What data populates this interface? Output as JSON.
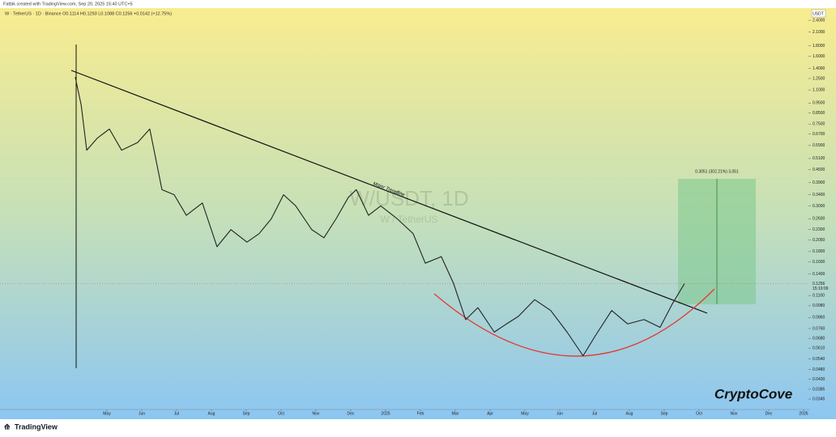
{
  "header": "Fatbik created with TradingView.com, Sep 20, 2025 15:40 UTC+5",
  "chart_data": {
    "type": "line",
    "title": "W/USDT, 1D",
    "subtitle": "W / TetherUS",
    "legend_text": "W · TetherUS · 1D · Binance  O0.1114  H0.1293  L0.1088  C0.1256  +0.0142 (+12.75%)",
    "currency": "USDT",
    "log_scale": true,
    "color": "#222222",
    "x": [
      -0.91,
      -0.74,
      -0.58,
      -0.28,
      0.07,
      0.42,
      0.88,
      1.23,
      1.58,
      1.93,
      2.28,
      2.74,
      3.16,
      3.56,
      4.02,
      4.37,
      4.72,
      5.07,
      5.42,
      5.88,
      6.23,
      6.58,
      6.93,
      7.16,
      7.51,
      7.86,
      8.33,
      8.79,
      9.14,
      9.6,
      9.95,
      10.3,
      10.65,
      11.12,
      11.47,
      11.81,
      12.28,
      12.74,
      13.21,
      13.67,
      14.02,
      14.49,
      14.95,
      15.42,
      15.88,
      16.23,
      16.58
    ],
    "values": [
      1.27,
      0.93,
      0.56,
      0.64,
      0.71,
      0.56,
      0.61,
      0.71,
      0.36,
      0.34,
      0.27,
      0.31,
      0.19,
      0.23,
      0.2,
      0.22,
      0.26,
      0.34,
      0.3,
      0.23,
      0.21,
      0.26,
      0.33,
      0.36,
      0.27,
      0.3,
      0.26,
      0.22,
      0.158,
      0.17,
      0.126,
      0.084,
      0.096,
      0.073,
      0.08,
      0.087,
      0.105,
      0.093,
      0.073,
      0.056,
      0.07,
      0.093,
      0.08,
      0.084,
      0.077,
      0.1,
      0.1256
    ],
    "last_price": {
      "value": 0.1256,
      "label": "0.1256"
    },
    "countdown": "15:19:09",
    "xlim": [
      -3.07,
      20.14
    ],
    "ylim": [
      0.0324,
      2.75
    ],
    "xticks": [
      {
        "value": 0,
        "label": "May"
      },
      {
        "value": 1,
        "label": "Jun"
      },
      {
        "value": 2,
        "label": "Jul"
      },
      {
        "value": 3,
        "label": "Aug"
      },
      {
        "value": 4,
        "label": "Sep"
      },
      {
        "value": 5,
        "label": "Oct"
      },
      {
        "value": 6,
        "label": "Nov"
      },
      {
        "value": 7,
        "label": "Dec"
      },
      {
        "value": 8,
        "label": "2025"
      },
      {
        "value": 9,
        "label": "Feb"
      },
      {
        "value": 10,
        "label": "Mar"
      },
      {
        "value": 11,
        "label": "Apr"
      },
      {
        "value": 12,
        "label": "May"
      },
      {
        "value": 13,
        "label": "Jun"
      },
      {
        "value": 14,
        "label": "Jul"
      },
      {
        "value": 15,
        "label": "Aug"
      },
      {
        "value": 16,
        "label": "Sep"
      },
      {
        "value": 17,
        "label": "Oct"
      },
      {
        "value": 18,
        "label": "Nov"
      },
      {
        "value": 19,
        "label": "Dec"
      },
      {
        "value": 20,
        "label": "2026"
      }
    ],
    "yticks": [
      {
        "value": 2.4,
        "label": "2.4000"
      },
      {
        "value": 2.1,
        "label": "2.1000"
      },
      {
        "value": 1.8,
        "label": "1.8000"
      },
      {
        "value": 1.6,
        "label": "1.6000"
      },
      {
        "value": 1.4,
        "label": "1.4000"
      },
      {
        "value": 1.25,
        "label": "1.2500"
      },
      {
        "value": 1.1,
        "label": "1.1000"
      },
      {
        "value": 0.95,
        "label": "0.9500"
      },
      {
        "value": 0.85,
        "label": "0.8500"
      },
      {
        "value": 0.75,
        "label": "0.7500"
      },
      {
        "value": 0.67,
        "label": "0.6700"
      },
      {
        "value": 0.59,
        "label": "0.5900"
      },
      {
        "value": 0.51,
        "label": "0.5100"
      },
      {
        "value": 0.45,
        "label": "0.4500"
      },
      {
        "value": 0.39,
        "label": "0.3900"
      },
      {
        "value": 0.34,
        "label": "0.3400"
      },
      {
        "value": 0.3,
        "label": "0.3000"
      },
      {
        "value": 0.26,
        "label": "0.2600"
      },
      {
        "value": 0.23,
        "label": "0.2300"
      },
      {
        "value": 0.205,
        "label": "0.2050"
      },
      {
        "value": 0.18,
        "label": "0.1800"
      },
      {
        "value": 0.16,
        "label": "0.1600"
      },
      {
        "value": 0.14,
        "label": "0.1400"
      },
      {
        "value": 0.11,
        "label": "0.1100"
      },
      {
        "value": 0.098,
        "label": "0.0980"
      },
      {
        "value": 0.086,
        "label": "0.0860"
      },
      {
        "value": 0.076,
        "label": "0.0760"
      },
      {
        "value": 0.068,
        "label": "0.0680"
      },
      {
        "value": 0.061,
        "label": "0.0610"
      },
      {
        "value": 0.054,
        "label": "0.0540"
      },
      {
        "value": 0.048,
        "label": "0.0480"
      },
      {
        "value": 0.043,
        "label": "0.0430"
      },
      {
        "value": 0.0385,
        "label": "0.0385"
      },
      {
        "value": 0.0345,
        "label": "0.0345"
      }
    ],
    "annotations": [
      "Major Trendline",
      "0.3051 (302.21%) 3,051"
    ],
    "watermark": "CryptoCove",
    "brand": "TradingView"
  }
}
